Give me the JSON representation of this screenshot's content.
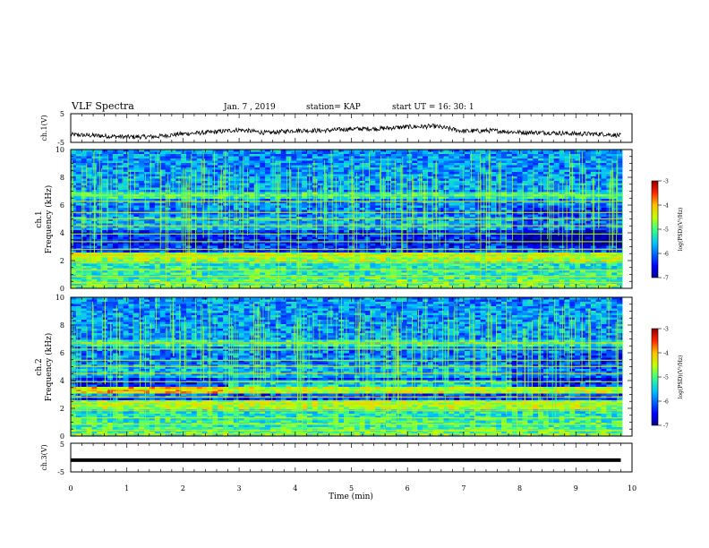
{
  "header": {
    "title": "VLF Spectra",
    "date": "Jan. 7 , 2019",
    "station": "station= KAP",
    "start": "start UT = 16: 30: 1"
  },
  "chart_data": [
    {
      "type": "line",
      "panel": "ch1-waveform",
      "ylabel": "ch.1(V)",
      "ylim": [
        -5,
        5
      ],
      "yticks": [
        "5",
        "-5"
      ],
      "xlim": [
        0,
        10
      ],
      "x": [
        0,
        0.5,
        1.0,
        1.5,
        2.0,
        2.5,
        3.0,
        3.5,
        4.0,
        4.5,
        5.0,
        5.5,
        6.0,
        6.5,
        7.0,
        7.5,
        8.0,
        8.5,
        9.0,
        9.5,
        9.8
      ],
      "y": [
        -2.3,
        -2.7,
        -3.1,
        -3.0,
        -2.0,
        -1.5,
        -0.6,
        -1.7,
        -0.8,
        -0.9,
        -0.3,
        -0.2,
        0.4,
        0.6,
        -1.1,
        -0.9,
        -1.5,
        -1.6,
        -2.0,
        -2.1,
        -2.6
      ]
    },
    {
      "type": "heatmap",
      "panel": "ch1-spectrogram",
      "ylabel_top": "ch.1",
      "ylabel": "Frequency (kHz)",
      "ylim": [
        0,
        10
      ],
      "yticks": [
        "0",
        "2",
        "4",
        "6",
        "8",
        "10"
      ],
      "xlim": [
        0,
        10
      ],
      "colorbar": {
        "label": "log(PSD)(V²/Hz)",
        "range": [
          -7,
          -3
        ],
        "ticks": [
          "-3",
          "-4",
          "-5",
          "-6",
          "-7"
        ]
      }
    },
    {
      "type": "heatmap",
      "panel": "ch2-spectrogram",
      "ylabel_top": "ch.2",
      "ylabel": "Frequency (kHz)",
      "ylim": [
        0,
        10
      ],
      "yticks": [
        "0",
        "2",
        "4",
        "6",
        "8",
        "10"
      ],
      "xlim": [
        0,
        10
      ],
      "colorbar": {
        "label": "log(PSD)(V²/Hz)",
        "range": [
          -7,
          -3
        ],
        "ticks": [
          "-3",
          "-4",
          "-5",
          "-6",
          "-7"
        ]
      }
    },
    {
      "type": "line",
      "panel": "ch3-waveform",
      "ylabel": "ch.3(V)",
      "ylim": [
        -5,
        5
      ],
      "yticks": [
        "5",
        "-5"
      ],
      "xlim": [
        0,
        10
      ],
      "x": [
        0,
        9.8
      ],
      "y": [
        -0.9,
        -0.9
      ]
    }
  ],
  "xaxis": {
    "label": "Time (min)",
    "ticks": [
      "0",
      "1",
      "2",
      "3",
      "4",
      "5",
      "6",
      "7",
      "8",
      "9",
      "10"
    ]
  },
  "colors": {
    "waveform": "#000000",
    "colormap": [
      "#00008f",
      "#0000ff",
      "#00b0ff",
      "#00e0c0",
      "#60ff60",
      "#ffff00",
      "#ff8000",
      "#ff0000",
      "#800000"
    ]
  }
}
